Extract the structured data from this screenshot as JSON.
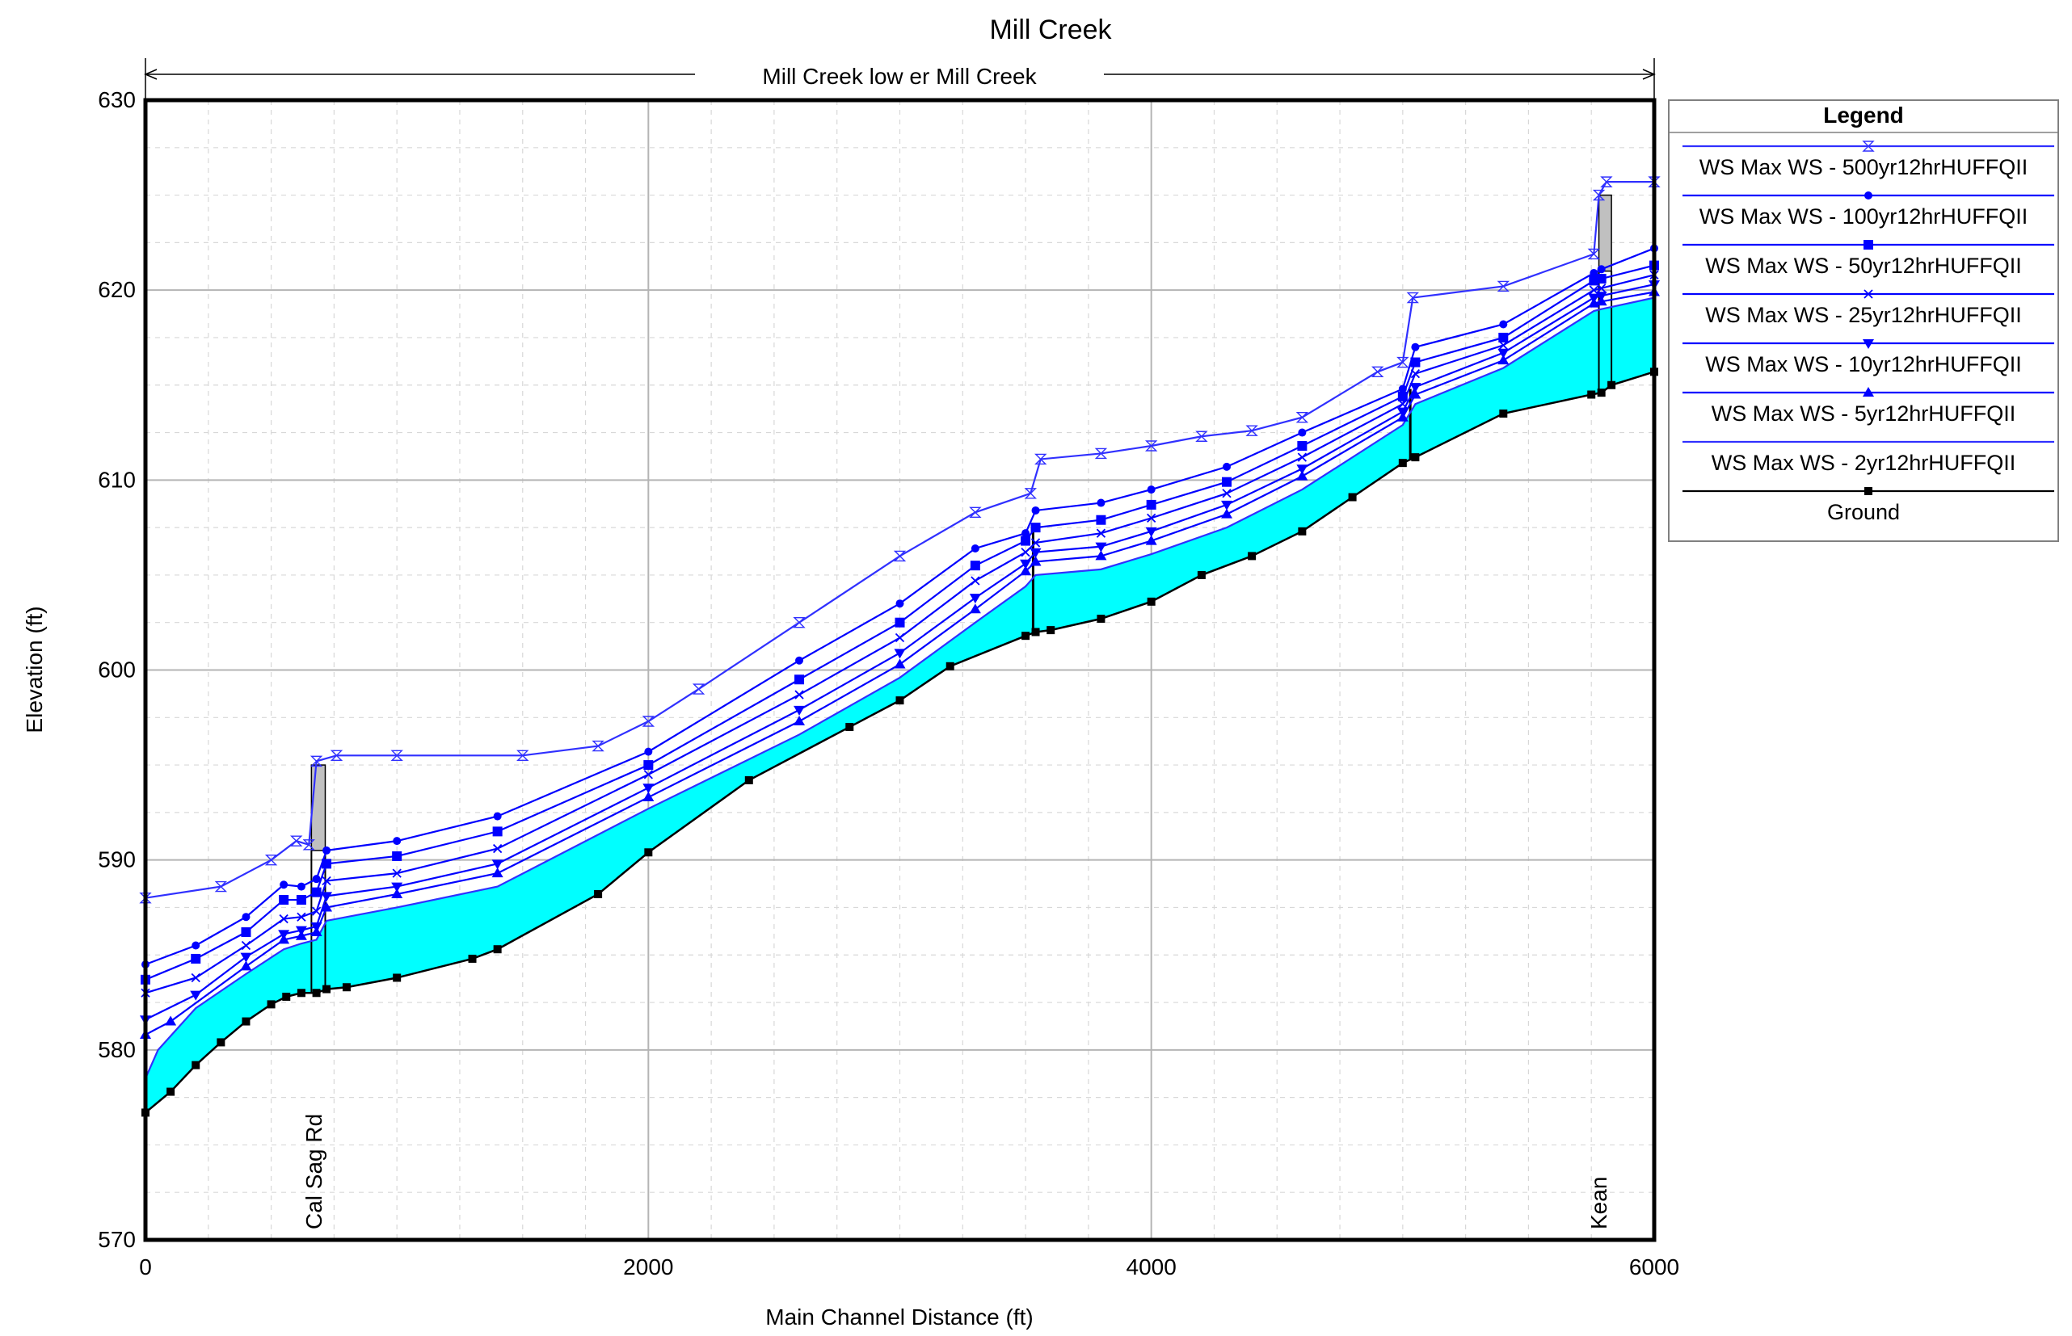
{
  "chart_data": {
    "type": "line",
    "title": "Mill Creek",
    "subtitle": "Mill Creek low er Mill Creek",
    "xlabel": "Main Channel Distance (ft)",
    "ylabel": "Elevation (ft)",
    "xlim": [
      0,
      6000
    ],
    "ylim": [
      570,
      630
    ],
    "x_ticks": [
      0,
      2000,
      4000,
      6000
    ],
    "y_ticks": [
      570,
      580,
      590,
      600,
      610,
      620,
      630
    ],
    "grid": true,
    "legend": {
      "title": "Legend",
      "placement": "right"
    },
    "annotations": [
      {
        "text": "Cal Sag Rd",
        "x": 680
      },
      {
        "text": "Kean",
        "x": 5800
      }
    ],
    "series": [
      {
        "name": "WS  Max WS - 500yr12hrHUFFQII",
        "color": "#3030ff",
        "marker": "hourglass",
        "points": [
          [
            0,
            588
          ],
          [
            300,
            588.6
          ],
          [
            500,
            590
          ],
          [
            600,
            591
          ],
          [
            650,
            590.8
          ],
          [
            680,
            595.2
          ],
          [
            760,
            595.5
          ],
          [
            1000,
            595.5
          ],
          [
            1500,
            595.5
          ],
          [
            1800,
            596
          ],
          [
            2000,
            597.3
          ],
          [
            2200,
            599
          ],
          [
            2600,
            602.5
          ],
          [
            3000,
            606
          ],
          [
            3300,
            608.3
          ],
          [
            3520,
            609.3
          ],
          [
            3560,
            611.1
          ],
          [
            3800,
            611.4
          ],
          [
            4000,
            611.8
          ],
          [
            4200,
            612.3
          ],
          [
            4400,
            612.6
          ],
          [
            4600,
            613.3
          ],
          [
            4900,
            615.7
          ],
          [
            5000,
            616.2
          ],
          [
            5040,
            619.6
          ],
          [
            5400,
            620.2
          ],
          [
            5760,
            621.9
          ],
          [
            5780,
            625
          ],
          [
            5810,
            625.7
          ],
          [
            6000,
            625.7
          ]
        ]
      },
      {
        "name": "WS  Max WS - 100yr12hrHUFFQII",
        "color": "#0000ff",
        "marker": "dot",
        "points": [
          [
            0,
            584.5
          ],
          [
            200,
            585.5
          ],
          [
            400,
            587
          ],
          [
            550,
            588.7
          ],
          [
            620,
            588.6
          ],
          [
            680,
            589
          ],
          [
            720,
            590.5
          ],
          [
            1000,
            591
          ],
          [
            1400,
            592.3
          ],
          [
            2000,
            595.7
          ],
          [
            2600,
            600.5
          ],
          [
            3000,
            603.5
          ],
          [
            3300,
            606.4
          ],
          [
            3500,
            607.2
          ],
          [
            3540,
            608.4
          ],
          [
            3800,
            608.8
          ],
          [
            4000,
            609.5
          ],
          [
            4300,
            610.7
          ],
          [
            4600,
            612.5
          ],
          [
            5000,
            614.8
          ],
          [
            5050,
            617
          ],
          [
            5400,
            618.2
          ],
          [
            5760,
            620.9
          ],
          [
            5790,
            621.1
          ],
          [
            6000,
            622.2
          ]
        ]
      },
      {
        "name": "WS  Max WS - 50yr12hrHUFFQII",
        "color": "#0000ff",
        "marker": "square",
        "points": [
          [
            0,
            583.7
          ],
          [
            200,
            584.8
          ],
          [
            400,
            586.2
          ],
          [
            550,
            587.9
          ],
          [
            620,
            587.9
          ],
          [
            680,
            588.3
          ],
          [
            720,
            589.8
          ],
          [
            1000,
            590.2
          ],
          [
            1400,
            591.5
          ],
          [
            2000,
            595
          ],
          [
            2600,
            599.5
          ],
          [
            3000,
            602.5
          ],
          [
            3300,
            605.5
          ],
          [
            3500,
            606.8
          ],
          [
            3540,
            607.5
          ],
          [
            3800,
            607.9
          ],
          [
            4000,
            608.7
          ],
          [
            4300,
            609.9
          ],
          [
            4600,
            611.8
          ],
          [
            5000,
            614.4
          ],
          [
            5050,
            616.2
          ],
          [
            5400,
            617.5
          ],
          [
            5760,
            620.5
          ],
          [
            5790,
            620.6
          ],
          [
            6000,
            621.3
          ]
        ]
      },
      {
        "name": "WS  Max WS - 25yr12hrHUFFQII",
        "color": "#0000ff",
        "marker": "x",
        "points": [
          [
            0,
            583
          ],
          [
            200,
            583.8
          ],
          [
            400,
            585.5
          ],
          [
            550,
            586.9
          ],
          [
            620,
            587
          ],
          [
            680,
            587.3
          ],
          [
            720,
            588.9
          ],
          [
            1000,
            589.3
          ],
          [
            1400,
            590.6
          ],
          [
            2000,
            594.5
          ],
          [
            2600,
            598.7
          ],
          [
            3000,
            601.7
          ],
          [
            3300,
            604.7
          ],
          [
            3500,
            606.2
          ],
          [
            3540,
            606.7
          ],
          [
            3800,
            607.2
          ],
          [
            4000,
            608
          ],
          [
            4300,
            609.3
          ],
          [
            4600,
            611.2
          ],
          [
            5000,
            614
          ],
          [
            5050,
            615.6
          ],
          [
            5400,
            617.1
          ],
          [
            5760,
            620
          ],
          [
            5790,
            620.1
          ],
          [
            6000,
            620.8
          ]
        ]
      },
      {
        "name": "WS  Max WS - 10yr12hrHUFFQII",
        "color": "#0000ff",
        "marker": "triangle-down",
        "points": [
          [
            0,
            581.6
          ],
          [
            200,
            582.9
          ],
          [
            400,
            584.9
          ],
          [
            550,
            586.1
          ],
          [
            620,
            586.3
          ],
          [
            680,
            586.5
          ],
          [
            720,
            588.1
          ],
          [
            1000,
            588.6
          ],
          [
            1400,
            589.8
          ],
          [
            2000,
            593.8
          ],
          [
            2600,
            597.9
          ],
          [
            3000,
            600.9
          ],
          [
            3300,
            603.8
          ],
          [
            3500,
            605.6
          ],
          [
            3540,
            606.2
          ],
          [
            3800,
            606.5
          ],
          [
            4000,
            607.3
          ],
          [
            4300,
            608.7
          ],
          [
            4600,
            610.6
          ],
          [
            5000,
            613.6
          ],
          [
            5050,
            614.9
          ],
          [
            5400,
            616.7
          ],
          [
            5760,
            619.6
          ],
          [
            5790,
            619.7
          ],
          [
            6000,
            620.3
          ]
        ]
      },
      {
        "name": "WS  Max WS - 5yr12hrHUFFQII",
        "color": "#0000ff",
        "marker": "triangle-up",
        "points": [
          [
            0,
            580.8
          ],
          [
            100,
            581.5
          ],
          [
            400,
            584.4
          ],
          [
            550,
            585.8
          ],
          [
            620,
            586
          ],
          [
            680,
            586.2
          ],
          [
            720,
            587.5
          ],
          [
            1000,
            588.2
          ],
          [
            1400,
            589.3
          ],
          [
            2000,
            593.3
          ],
          [
            2600,
            597.3
          ],
          [
            3000,
            600.3
          ],
          [
            3300,
            603.2
          ],
          [
            3500,
            605.2
          ],
          [
            3540,
            605.7
          ],
          [
            3800,
            606
          ],
          [
            4000,
            606.8
          ],
          [
            4300,
            608.2
          ],
          [
            4600,
            610.2
          ],
          [
            5000,
            613.3
          ],
          [
            5050,
            614.5
          ],
          [
            5400,
            616.3
          ],
          [
            5760,
            619.3
          ],
          [
            5790,
            619.4
          ],
          [
            6000,
            619.9
          ]
        ]
      },
      {
        "name": "WS  Max WS - 2yr12hrHUFFQII",
        "color": "#3030ff",
        "marker": "none",
        "fill": "#00ffff",
        "points": [
          [
            0,
            578.5
          ],
          [
            50,
            580
          ],
          [
            200,
            582.2
          ],
          [
            400,
            584
          ],
          [
            550,
            585.3
          ],
          [
            620,
            585.6
          ],
          [
            680,
            585.8
          ],
          [
            720,
            586.8
          ],
          [
            1000,
            587.5
          ],
          [
            1400,
            588.6
          ],
          [
            2000,
            592.7
          ],
          [
            2600,
            596.6
          ],
          [
            3000,
            599.6
          ],
          [
            3300,
            602.5
          ],
          [
            3500,
            604.4
          ],
          [
            3540,
            605
          ],
          [
            3800,
            605.3
          ],
          [
            4000,
            606.1
          ],
          [
            4300,
            607.5
          ],
          [
            4600,
            609.5
          ],
          [
            5000,
            612.9
          ],
          [
            5050,
            614
          ],
          [
            5400,
            615.9
          ],
          [
            5760,
            618.9
          ],
          [
            5790,
            619
          ],
          [
            6000,
            619.6
          ]
        ]
      },
      {
        "name": "Ground",
        "color": "#000000",
        "marker": "square-small",
        "points": [
          [
            0,
            576.7
          ],
          [
            100,
            577.8
          ],
          [
            200,
            579.2
          ],
          [
            300,
            580.4
          ],
          [
            400,
            581.5
          ],
          [
            500,
            582.4
          ],
          [
            560,
            582.8
          ],
          [
            620,
            583
          ],
          [
            680,
            583
          ],
          [
            720,
            583.2
          ],
          [
            800,
            583.3
          ],
          [
            1000,
            583.8
          ],
          [
            1300,
            584.8
          ],
          [
            1400,
            585.3
          ],
          [
            1800,
            588.2
          ],
          [
            2000,
            590.4
          ],
          [
            2400,
            594.2
          ],
          [
            2800,
            597
          ],
          [
            3000,
            598.4
          ],
          [
            3200,
            600.2
          ],
          [
            3500,
            601.8
          ],
          [
            3540,
            602
          ],
          [
            3600,
            602.1
          ],
          [
            3800,
            602.7
          ],
          [
            4000,
            603.6
          ],
          [
            4200,
            605
          ],
          [
            4400,
            606
          ],
          [
            4600,
            607.3
          ],
          [
            4800,
            609.1
          ],
          [
            5000,
            610.9
          ],
          [
            5050,
            611.2
          ],
          [
            5400,
            613.5
          ],
          [
            5750,
            614.5
          ],
          [
            5790,
            614.6
          ],
          [
            5830,
            615
          ],
          [
            6000,
            615.7
          ]
        ]
      }
    ]
  }
}
